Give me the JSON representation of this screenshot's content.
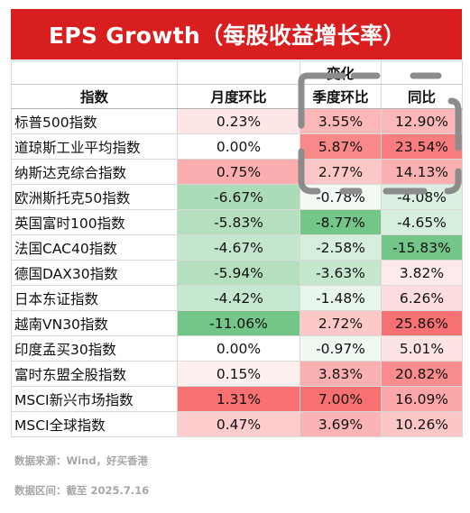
{
  "title": "EPS Growth（每股收益增长率）",
  "chart_data": {
    "type": "table",
    "group_header": "变化",
    "columns": [
      "指数",
      "月度环比",
      "季度环比",
      "同比"
    ],
    "rows": [
      {
        "name": "标普500指数",
        "mom": "0.23%",
        "qoq": "3.55%",
        "yoy": "12.90%",
        "mom_v": 0.23,
        "qoq_v": 3.55,
        "yoy_v": 12.9
      },
      {
        "name": "道琼斯工业平均指数",
        "mom": "0.00%",
        "qoq": "5.87%",
        "yoy": "23.54%",
        "mom_v": 0.0,
        "qoq_v": 5.87,
        "yoy_v": 23.54
      },
      {
        "name": "纳斯达克综合指数",
        "mom": "0.75%",
        "qoq": "2.77%",
        "yoy": "14.13%",
        "mom_v": 0.75,
        "qoq_v": 2.77,
        "yoy_v": 14.13
      },
      {
        "name": "欧洲斯托克50指数",
        "mom": "-6.67%",
        "qoq": "-0.78%",
        "yoy": "-4.08%",
        "mom_v": -6.67,
        "qoq_v": -0.78,
        "yoy_v": -4.08
      },
      {
        "name": "英国富时100指数",
        "mom": "-5.83%",
        "qoq": "-8.77%",
        "yoy": "-4.65%",
        "mom_v": -5.83,
        "qoq_v": -8.77,
        "yoy_v": -4.65
      },
      {
        "name": "法国CAC40指数",
        "mom": "-4.67%",
        "qoq": "-2.58%",
        "yoy": "-15.83%",
        "mom_v": -4.67,
        "qoq_v": -2.58,
        "yoy_v": -15.83
      },
      {
        "name": "德国DAX30指数",
        "mom": "-5.94%",
        "qoq": "-3.63%",
        "yoy": "3.82%",
        "mom_v": -5.94,
        "qoq_v": -3.63,
        "yoy_v": 3.82
      },
      {
        "name": "日本东证指数",
        "mom": "-4.42%",
        "qoq": "-1.48%",
        "yoy": "6.26%",
        "mom_v": -4.42,
        "qoq_v": -1.48,
        "yoy_v": 6.26
      },
      {
        "name": "越南VN30指数",
        "mom": "-11.06%",
        "qoq": "2.72%",
        "yoy": "25.86%",
        "mom_v": -11.06,
        "qoq_v": 2.72,
        "yoy_v": 25.86
      },
      {
        "name": "印度孟买30指数",
        "mom": "0.00%",
        "qoq": "-0.97%",
        "yoy": "5.01%",
        "mom_v": 0.0,
        "qoq_v": -0.97,
        "yoy_v": 5.01
      },
      {
        "name": "富时东盟全股指数",
        "mom": "0.15%",
        "qoq": "3.83%",
        "yoy": "20.82%",
        "mom_v": 0.15,
        "qoq_v": 3.83,
        "yoy_v": 20.82
      },
      {
        "name": "MSCI新兴市场指数",
        "mom": "1.31%",
        "qoq": "7.00%",
        "yoy": "16.09%",
        "mom_v": 1.31,
        "qoq_v": 7.0,
        "yoy_v": 16.09
      },
      {
        "name": "MSCI全球指数",
        "mom": "0.47%",
        "qoq": "3.69%",
        "yoy": "10.26%",
        "mom_v": 0.47,
        "qoq_v": 3.69,
        "yoy_v": 10.26
      }
    ],
    "color_scale": {
      "positive": "#f8696b",
      "negative": "#63be7b",
      "neutral": "#ffffff"
    }
  },
  "colors": {
    "banner": "#d81e1e",
    "overlay_dash": "#8c8c8c"
  },
  "footnotes": [
    "数据来源：Wind，好买香港",
    "数据区间：截至 2025.7.16"
  ]
}
